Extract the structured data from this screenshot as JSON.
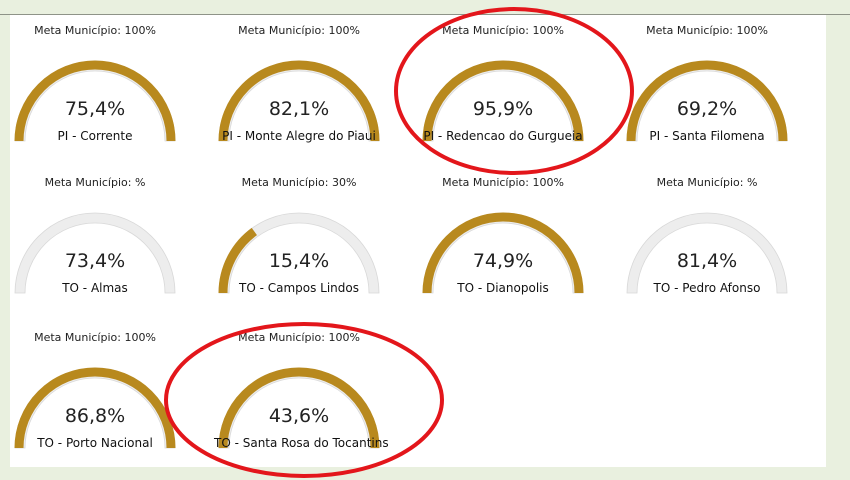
{
  "colors": {
    "gauge_track": "#ededed",
    "gauge_fill": "#b8891e",
    "annotation_ellipse": "#e3161b"
  },
  "chart_data": {
    "type": "gauge",
    "scale_max": 100,
    "gauges": [
      {
        "meta_label": "Meta Município: 100%",
        "meta_percent": 100,
        "value_label": "75,4%",
        "municipality": "PI - Corrente"
      },
      {
        "meta_label": "Meta Município: 100%",
        "meta_percent": 100,
        "value_label": "82,1%",
        "municipality": "PI - Monte Alegre do Piaui"
      },
      {
        "meta_label": "Meta Município: 100%",
        "meta_percent": 100,
        "value_label": "95,9%",
        "municipality": "PI - Redencao do Gurgueia"
      },
      {
        "meta_label": "Meta Município: 100%",
        "meta_percent": 100,
        "value_label": "69,2%",
        "municipality": "PI - Santa Filomena"
      },
      {
        "meta_label": "Meta Município: %",
        "meta_percent": 0,
        "value_label": "73,4%",
        "municipality": "TO - Almas"
      },
      {
        "meta_label": "Meta Município: 30%",
        "meta_percent": 30,
        "value_label": "15,4%",
        "municipality": "TO - Campos Lindos"
      },
      {
        "meta_label": "Meta Município: 100%",
        "meta_percent": 100,
        "value_label": "74,9%",
        "municipality": "TO - Dianopolis"
      },
      {
        "meta_label": "Meta Município: %",
        "meta_percent": 0,
        "value_label": "81,4%",
        "municipality": "TO - Pedro Afonso"
      },
      {
        "meta_label": "Meta Município: 100%",
        "meta_percent": 100,
        "value_label": "86,8%",
        "municipality": "TO - Porto Nacional"
      },
      {
        "meta_label": "Meta Município: 100%",
        "meta_percent": 100,
        "value_label": "43,6%",
        "municipality": "TO - Santa Rosa do Tocantins"
      }
    ],
    "highlighted": [
      "PI - Redencao do Gurgueia",
      "TO - Santa Rosa do Tocantins"
    ]
  }
}
